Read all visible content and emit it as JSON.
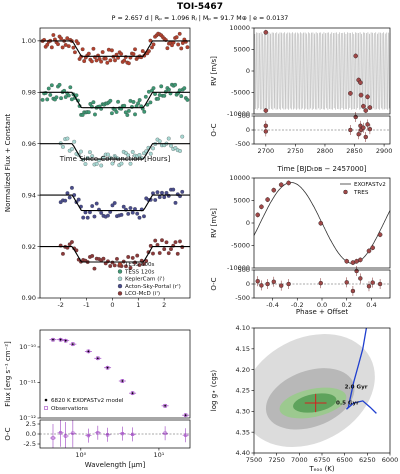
{
  "header": {
    "title": "TOI-5467",
    "subtitle": "P = 2.657 d | Rₚ = 1.096 Rⱼ | Mₚ = 91.7 M⊕ | e = 0.0137"
  },
  "chart_data": [
    {
      "id": "lightcurves",
      "type": "scatter",
      "xlabel": "Time Since Conjunction [Hours]",
      "ylabel": "Normalized Flux + Constant",
      "xlim": [
        -2.8,
        3.0
      ],
      "ylim": [
        0.9,
        1.005
      ],
      "xticks": [
        "-2",
        "-1",
        "0",
        "1",
        "2"
      ],
      "yticks": [
        "0.90",
        "0.92",
        "0.94",
        "0.96",
        "0.98",
        "1.00"
      ],
      "series": [
        {
          "name": "TESS 600s",
          "color": "#b2412e",
          "offset": 1.0,
          "depth": 0.006
        },
        {
          "name": "TESS 120s",
          "color": "#3e9874",
          "offset": 0.98,
          "depth": 0.006
        },
        {
          "name": "KeplerCam (i')",
          "color": "#a8d8d3",
          "offset": 0.96,
          "depth": 0.006
        },
        {
          "name": "Acton-Sky-Portal (r')",
          "color": "#4a4d8c",
          "offset": 0.94,
          "depth": 0.006
        },
        {
          "name": "LCO-McD (i')",
          "color": "#8c3a3a",
          "offset": 0.92,
          "depth": 0.006
        }
      ]
    },
    {
      "id": "rv_time",
      "type": "scatter",
      "xlabel": "Time [BJDₜᴅʙ − 2457000]",
      "ylabel": "RV [m/s]",
      "ylim": [
        -10000,
        10000
      ],
      "xlim": [
        2680,
        2910
      ],
      "xticks": [
        "2700",
        "2750",
        "2800",
        "2850",
        "2900"
      ],
      "yticks": [
        "-10000",
        "-5000",
        "0",
        "5000",
        "10000"
      ],
      "points": [
        {
          "x": 2700,
          "y": 9000
        },
        {
          "x": 2700,
          "y": -9200
        },
        {
          "x": 2843,
          "y": -5200
        },
        {
          "x": 2852,
          "y": 3500
        },
        {
          "x": 2857,
          "y": -2100
        },
        {
          "x": 2860,
          "y": -2700
        },
        {
          "x": 2861,
          "y": -5600
        },
        {
          "x": 2865,
          "y": -8200
        },
        {
          "x": 2869,
          "y": -9200
        },
        {
          "x": 2872,
          "y": -6000
        },
        {
          "x": 2876,
          "y": -8500
        }
      ],
      "oc_label": "O-C",
      "oc_ylim": [
        -500,
        500
      ],
      "oc_yticks": [
        "-500",
        "0",
        "500"
      ],
      "oc_points": [
        {
          "x": 2700,
          "y": 150
        },
        {
          "x": 2700,
          "y": -50
        },
        {
          "x": 2843,
          "y": 0
        },
        {
          "x": 2852,
          "y": 650
        },
        {
          "x": 2857,
          "y": -150
        },
        {
          "x": 2860,
          "y": 150
        },
        {
          "x": 2861,
          "y": 0
        },
        {
          "x": 2865,
          "y": 80
        },
        {
          "x": 2869,
          "y": -250
        },
        {
          "x": 2872,
          "y": 200
        },
        {
          "x": 2876,
          "y": 30
        }
      ]
    },
    {
      "id": "rv_phase",
      "type": "scatter",
      "xlabel": "Phase + Offset",
      "ylabel": "RV [m/s]",
      "xlim": [
        -0.55,
        0.55
      ],
      "ylim": [
        -10000,
        10000
      ],
      "xticks": [
        "-0.4",
        "-0.2",
        "0.0",
        "0.2",
        "0.4"
      ],
      "yticks": [
        "-10000",
        "-5000",
        "0",
        "5000",
        "10000"
      ],
      "semi_amplitude": 9000,
      "legend": [
        "EXOFASTv2",
        "TRES"
      ],
      "points": [
        {
          "x": -0.52,
          "y": 1800
        },
        {
          "x": -0.49,
          "y": 3600
        },
        {
          "x": -0.44,
          "y": 5200
        },
        {
          "x": -0.39,
          "y": 7300
        },
        {
          "x": -0.33,
          "y": 8500
        },
        {
          "x": -0.27,
          "y": 8900
        },
        {
          "x": -0.01,
          "y": -50
        },
        {
          "x": 0.2,
          "y": -8500
        },
        {
          "x": 0.25,
          "y": -8800
        },
        {
          "x": 0.28,
          "y": -8500
        },
        {
          "x": 0.31,
          "y": -8200
        },
        {
          "x": 0.38,
          "y": -6200
        },
        {
          "x": 0.41,
          "y": -5500
        },
        {
          "x": 0.47,
          "y": -2600
        }
      ],
      "oc_label": "O-C",
      "oc_ylim": [
        -500,
        500
      ],
      "oc_yticks": [
        "-500",
        "0",
        "500"
      ],
      "oc_points": [
        {
          "x": -0.52,
          "y": 100
        },
        {
          "x": -0.49,
          "y": -50
        },
        {
          "x": -0.44,
          "y": 0
        },
        {
          "x": -0.39,
          "y": 80
        },
        {
          "x": -0.33,
          "y": -60
        },
        {
          "x": -0.27,
          "y": 0
        },
        {
          "x": -0.01,
          "y": 30
        },
        {
          "x": 0.2,
          "y": 60
        },
        {
          "x": 0.25,
          "y": -250
        },
        {
          "x": 0.28,
          "y": 500
        },
        {
          "x": 0.31,
          "y": 200
        },
        {
          "x": 0.38,
          "y": -80
        },
        {
          "x": 0.41,
          "y": 50
        },
        {
          "x": 0.47,
          "y": 0
        }
      ]
    },
    {
      "id": "sed",
      "type": "scatter",
      "xlabel": "Wavelength [μm]",
      "ylabel": "Flux [erg s⁻¹ cm⁻²]",
      "xscale": "log",
      "yscale": "log",
      "xlim": [
        0.3,
        25
      ],
      "ylim": [
        1e-12,
        3e-10
      ],
      "xticks": [
        "10⁰",
        "10¹"
      ],
      "yticks": [
        "10⁻¹⁰",
        "10⁻¹¹",
        "10⁻¹²"
      ],
      "legend": [
        "6820 K EXOFASTv2 model",
        "Observations"
      ],
      "points": [
        {
          "x": 0.44,
          "y": 1.6e-10
        },
        {
          "x": 0.55,
          "y": 1.6e-10
        },
        {
          "x": 0.64,
          "y": 1.5e-10
        },
        {
          "x": 0.79,
          "y": 1.2e-10
        },
        {
          "x": 1.25,
          "y": 7.5e-11
        },
        {
          "x": 1.65,
          "y": 4.8e-11
        },
        {
          "x": 2.2,
          "y": 2.6e-11
        },
        {
          "x": 3.4,
          "y": 1.1e-11
        },
        {
          "x": 4.6,
          "y": 5e-12
        },
        {
          "x": 12.0,
          "y": 2.2e-12
        },
        {
          "x": 22.0,
          "y": 1.2e-12
        }
      ],
      "oc_label": "O-C",
      "oc_ylim": [
        -3.5,
        3.5
      ],
      "oc_yticks": [
        "-2.5",
        "0.0",
        "2.5"
      ],
      "oc_points": [
        {
          "x": 0.44,
          "y": -1.0
        },
        {
          "x": 0.55,
          "y": 0.3
        },
        {
          "x": 0.64,
          "y": -0.5
        },
        {
          "x": 0.79,
          "y": 0.2
        },
        {
          "x": 1.25,
          "y": -0.4
        },
        {
          "x": 1.65,
          "y": 0.3
        },
        {
          "x": 2.2,
          "y": -0.2
        },
        {
          "x": 3.4,
          "y": 0.1
        },
        {
          "x": 4.6,
          "y": -0.1
        },
        {
          "x": 12.0,
          "y": 0.2
        },
        {
          "x": 22.0,
          "y": -0.3
        }
      ]
    },
    {
      "id": "hr",
      "type": "scatter",
      "xlabel": "Tₑₒₒ (K)",
      "ylabel": "log g⋆ (cgs)",
      "xlim": [
        7500,
        6000
      ],
      "ylim": [
        4.4,
        4.1
      ],
      "xticks": [
        "7500",
        "7250",
        "7000",
        "6750",
        "6500",
        "6250",
        "6000"
      ],
      "yticks": [
        "4.10",
        "4.15",
        "4.20",
        "4.25",
        "4.30",
        "4.35",
        "4.40"
      ],
      "star": {
        "teff": 6820,
        "logg": 4.28,
        "teff_err": 120,
        "logg_err": 0.022
      },
      "labels": [
        "2.0 Gyr",
        "0.5 Gyr"
      ],
      "track": [
        {
          "teff": 6260,
          "logg": 4.1
        },
        {
          "teff": 6300,
          "logg": 4.15
        },
        {
          "teff": 6350,
          "logg": 4.19
        },
        {
          "teff": 6400,
          "logg": 4.23
        },
        {
          "teff": 6440,
          "logg": 4.27
        },
        {
          "teff": 6460,
          "logg": 4.29
        },
        {
          "teff": 6480,
          "logg": 4.295
        },
        {
          "teff": 6400,
          "logg": 4.28
        },
        {
          "teff": 6300,
          "logg": 4.275
        },
        {
          "teff": 6220,
          "logg": 4.29
        },
        {
          "teff": 6150,
          "logg": 4.305
        }
      ]
    }
  ]
}
